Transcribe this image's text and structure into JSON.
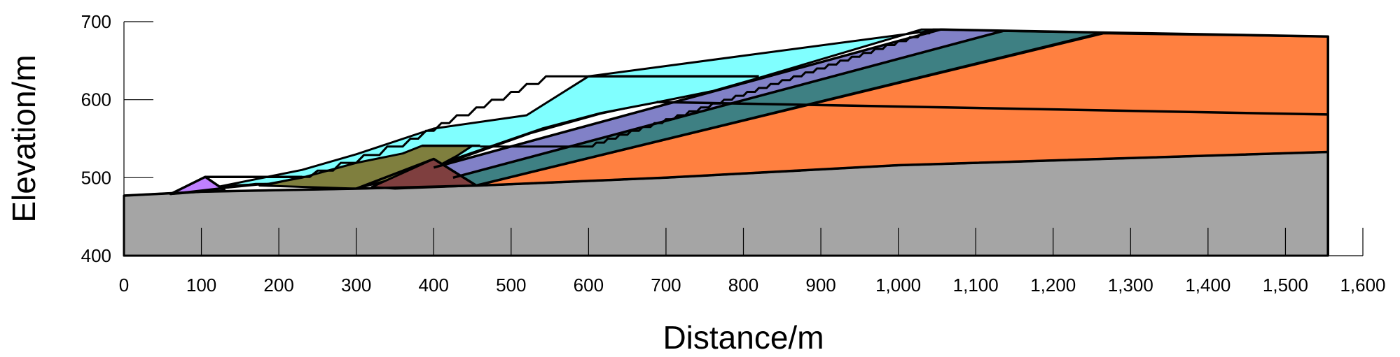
{
  "chart_data": {
    "type": "area",
    "title": "",
    "xlabel": "Distance/m",
    "ylabel": "Elevation/m",
    "xlim": [
      0,
      1600
    ],
    "ylim": [
      400,
      700
    ],
    "x_ticks": [
      0,
      100,
      200,
      300,
      400,
      500,
      600,
      700,
      800,
      900,
      1000,
      1100,
      1200,
      1300,
      1400,
      1500,
      1600
    ],
    "x_tick_labels": [
      "0",
      "100",
      "200",
      "300",
      "400",
      "500",
      "600",
      "700",
      "800",
      "900",
      "1,000",
      "1,100",
      "1,200",
      "1,300",
      "1,400",
      "1,500",
      "1,600"
    ],
    "y_ticks": [
      400,
      500,
      600,
      700
    ],
    "y_tick_labels": [
      "400",
      "500",
      "600",
      "700"
    ],
    "grid": false,
    "legend": "none",
    "layers": [
      {
        "color": "#a5a5a5",
        "points": [
          [
            0,
            400
          ],
          [
            0,
            477
          ],
          [
            100,
            482
          ],
          [
            300,
            486
          ],
          [
            460,
            490
          ],
          [
            700,
            500
          ],
          [
            1000,
            516
          ],
          [
            1100,
            519
          ],
          [
            1555,
            533
          ],
          [
            1555,
            400
          ]
        ]
      },
      {
        "color": "#ff8040",
        "points": [
          [
            460,
            490
          ],
          [
            700,
            500
          ],
          [
            1000,
            516
          ],
          [
            1100,
            519
          ],
          [
            1555,
            533
          ],
          [
            1555,
            681
          ],
          [
            1265,
            685
          ],
          [
            455,
            490
          ]
        ]
      },
      {
        "color": "#3e8083",
        "points": [
          [
            425,
            500
          ],
          [
            1135,
            688
          ],
          [
            1265,
            686
          ],
          [
            455,
            490
          ]
        ]
      },
      {
        "color": "#8181c7",
        "points": [
          [
            400,
            513
          ],
          [
            1055,
            690
          ],
          [
            1135,
            688
          ],
          [
            425,
            500
          ]
        ]
      },
      {
        "color": "#84c0ff",
        "points": [
          [
            130,
            487
          ],
          [
            170,
            492
          ],
          [
            300,
            498
          ],
          [
            385,
            540
          ],
          [
            460,
            540
          ],
          [
            600,
            592
          ],
          [
            607,
            630
          ],
          [
            810,
            630
          ],
          [
            760,
            612
          ],
          [
            685,
            597
          ],
          [
            615,
            582
          ],
          [
            525,
            557
          ],
          [
            400,
            513
          ]
        ]
      },
      {
        "color": "#80ffff",
        "points": [
          [
            120,
            488
          ],
          [
            230,
            510
          ],
          [
            300,
            530
          ],
          [
            400,
            563
          ],
          [
            520,
            580
          ],
          [
            600,
            630
          ],
          [
            1055,
            690
          ],
          [
            1030,
            690
          ],
          [
            820,
            628
          ],
          [
            760,
            611
          ],
          [
            685,
            596
          ],
          [
            616,
            583
          ],
          [
            540,
            563
          ],
          [
            400,
            515
          ],
          [
            300,
            497
          ],
          [
            140,
            490
          ]
        ]
      },
      {
        "color": "#7f7f3e",
        "points": [
          [
            300,
            486
          ],
          [
            400,
            512
          ],
          [
            430,
            528
          ],
          [
            450,
            541
          ],
          [
            385,
            541
          ],
          [
            360,
            531
          ],
          [
            300,
            519
          ],
          [
            230,
            500
          ],
          [
            175,
            490
          ]
        ]
      },
      {
        "color": "#7f3f3f",
        "points": [
          [
            320,
            488
          ],
          [
            400,
            524
          ],
          [
            455,
            490
          ],
          [
            350,
            486
          ]
        ]
      },
      {
        "color": "#c080ff",
        "points": [
          [
            60,
            479
          ],
          [
            105,
            501
          ],
          [
            130,
            484
          ],
          [
            100,
            482
          ]
        ]
      }
    ],
    "boundary_lines": [
      [
        [
          0,
          477
        ],
        [
          100,
          482
        ],
        [
          300,
          486
        ],
        [
          460,
          490
        ],
        [
          700,
          500
        ],
        [
          1000,
          516
        ],
        [
          1100,
          519
        ],
        [
          1555,
          533
        ]
      ],
      [
        [
          1555,
          400
        ],
        [
          1555,
          681
        ],
        [
          1265,
          686
        ],
        [
          1055,
          690
        ]
      ],
      [
        [
          455,
          490
        ],
        [
          1265,
          686
        ]
      ],
      [
        [
          425,
          500
        ],
        [
          1135,
          688
        ]
      ],
      [
        [
          400,
          513
        ],
        [
          1055,
          690
        ]
      ],
      [
        [
          688,
          597
        ],
        [
          1555,
          581
        ]
      ],
      [
        [
          300,
          486
        ],
        [
          400,
          524
        ],
        [
          455,
          490
        ]
      ],
      [
        [
          60,
          479
        ],
        [
          105,
          501
        ],
        [
          130,
          484
        ]
      ],
      [
        [
          105,
          501
        ],
        [
          230,
          501
        ]
      ],
      [
        [
          385,
          541
        ],
        [
          460,
          541
        ]
      ],
      [
        [
          600,
          630
        ],
        [
          820,
          630
        ]
      ]
    ],
    "step_outlines": [
      [
        [
          60,
          479
        ],
        [
          130,
          487
        ],
        [
          170,
          492
        ],
        [
          190,
          492
        ],
        [
          230,
          501
        ],
        [
          240,
          501
        ],
        [
          250,
          509
        ],
        [
          270,
          509
        ],
        [
          280,
          519
        ],
        [
          300,
          519
        ],
        [
          310,
          529
        ],
        [
          330,
          529
        ],
        [
          340,
          540
        ],
        [
          360,
          540
        ],
        [
          370,
          550
        ],
        [
          380,
          550
        ],
        [
          390,
          560
        ],
        [
          400,
          560
        ],
        [
          410,
          570
        ],
        [
          420,
          570
        ],
        [
          430,
          580
        ],
        [
          445,
          580
        ],
        [
          455,
          590
        ],
        [
          465,
          590
        ],
        [
          475,
          600
        ],
        [
          490,
          600
        ],
        [
          500,
          610
        ],
        [
          510,
          610
        ],
        [
          520,
          620
        ],
        [
          535,
          620
        ],
        [
          545,
          630
        ],
        [
          580,
          630
        ],
        [
          600,
          630
        ]
      ],
      [
        [
          1055,
          690
        ],
        [
          1045,
          690
        ],
        [
          1040,
          685
        ],
        [
          1030,
          685
        ],
        [
          1025,
          680
        ],
        [
          1015,
          680
        ],
        [
          1010,
          675
        ],
        [
          1000,
          675
        ],
        [
          995,
          670
        ],
        [
          985,
          670
        ],
        [
          980,
          665
        ],
        [
          970,
          665
        ],
        [
          965,
          660
        ],
        [
          955,
          660
        ],
        [
          950,
          655
        ],
        [
          940,
          655
        ],
        [
          935,
          650
        ],
        [
          925,
          650
        ],
        [
          920,
          645
        ],
        [
          910,
          645
        ],
        [
          905,
          640
        ],
        [
          895,
          640
        ],
        [
          890,
          635
        ],
        [
          880,
          635
        ],
        [
          875,
          630
        ],
        [
          865,
          630
        ],
        [
          860,
          625
        ],
        [
          850,
          625
        ],
        [
          845,
          620
        ],
        [
          835,
          620
        ],
        [
          830,
          615
        ],
        [
          820,
          615
        ],
        [
          815,
          610
        ],
        [
          805,
          610
        ],
        [
          800,
          605
        ],
        [
          790,
          605
        ],
        [
          785,
          600
        ],
        [
          775,
          600
        ],
        [
          770,
          595
        ],
        [
          760,
          595
        ],
        [
          755,
          590
        ],
        [
          745,
          590
        ],
        [
          740,
          585
        ],
        [
          730,
          585
        ],
        [
          725,
          580
        ],
        [
          715,
          580
        ],
        [
          710,
          575
        ],
        [
          700,
          575
        ],
        [
          695,
          570
        ],
        [
          685,
          570
        ],
        [
          680,
          565
        ],
        [
          670,
          565
        ],
        [
          665,
          560
        ],
        [
          655,
          560
        ],
        [
          650,
          555
        ],
        [
          640,
          555
        ],
        [
          635,
          550
        ],
        [
          625,
          550
        ],
        [
          620,
          545
        ],
        [
          610,
          545
        ],
        [
          605,
          540
        ],
        [
          460,
          540
        ]
      ]
    ]
  }
}
